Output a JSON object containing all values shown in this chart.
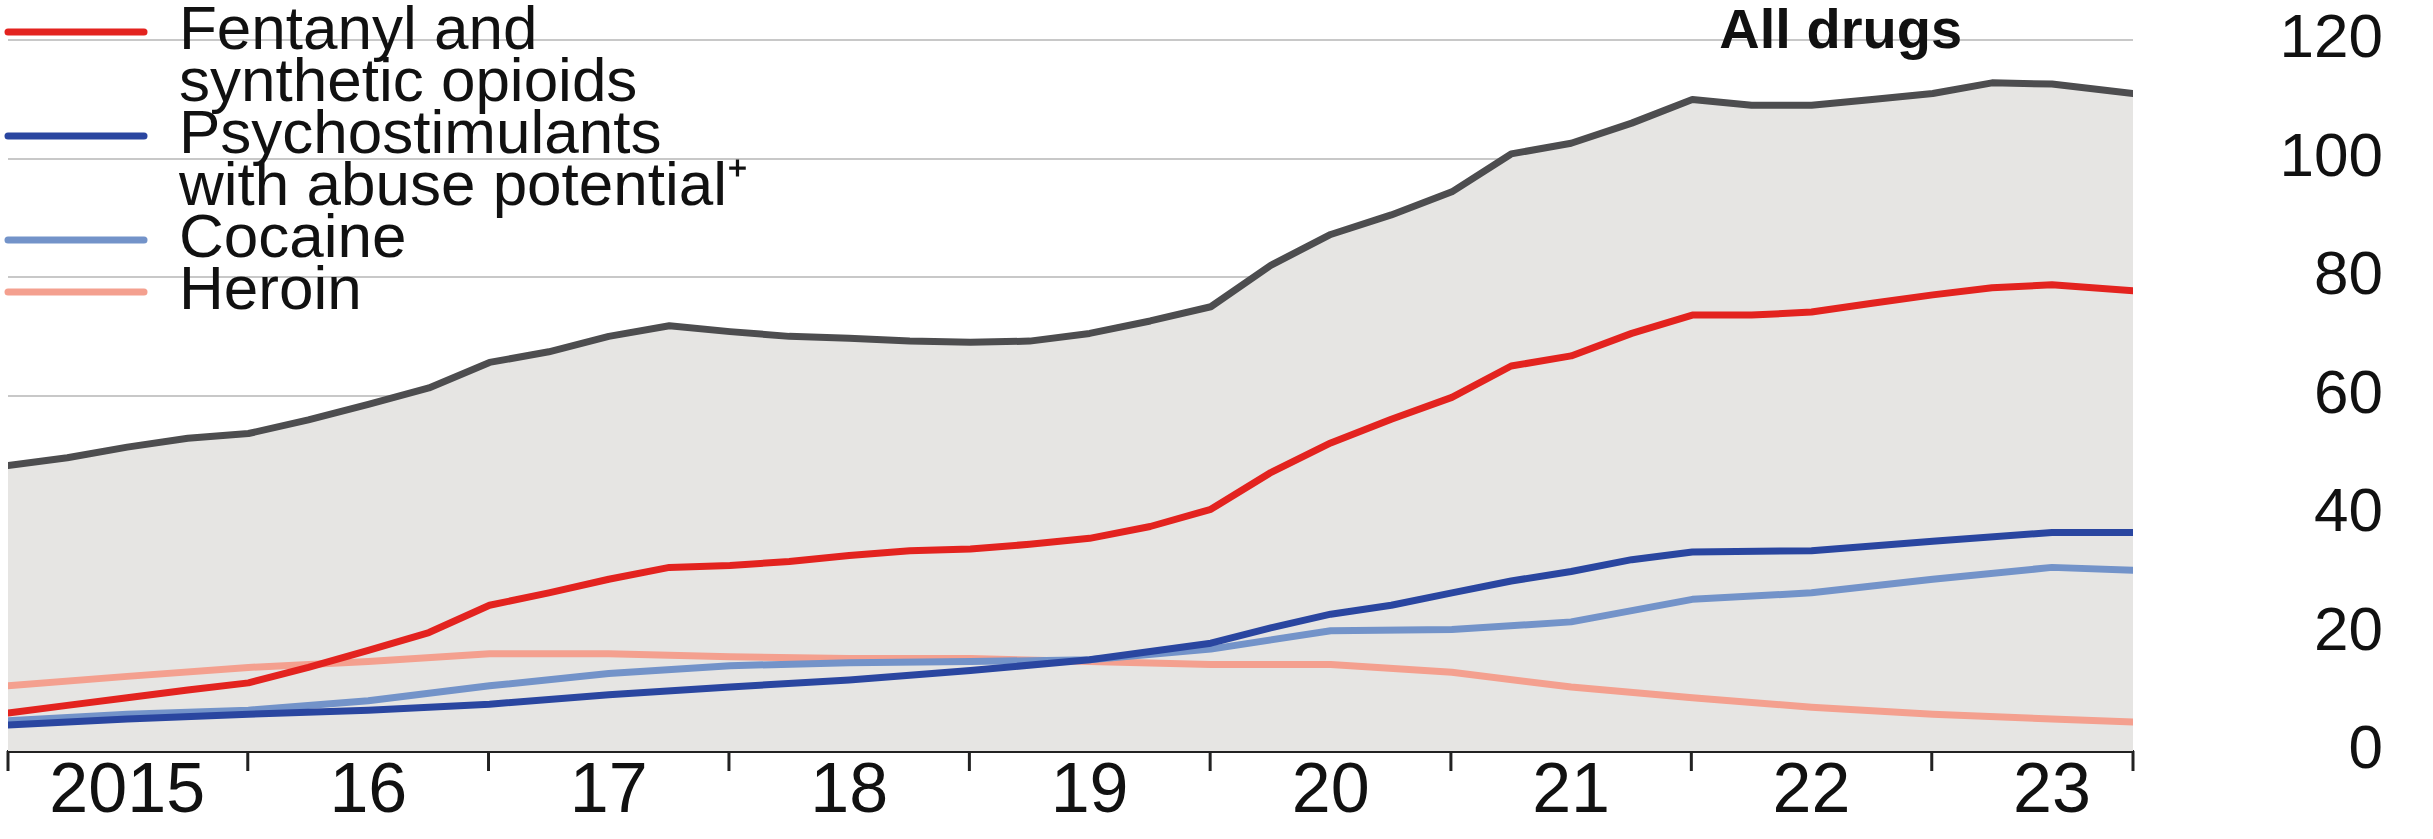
{
  "chart_data": {
    "type": "line",
    "xlim": [
      "2015-01",
      "2023-11"
    ],
    "xticks": [
      {
        "value": "2015-07",
        "label": "2015"
      },
      {
        "value": "2016-07",
        "label": "16"
      },
      {
        "value": "2017-07",
        "label": "17"
      },
      {
        "value": "2018-07",
        "label": "18"
      },
      {
        "value": "2019-07",
        "label": "19"
      },
      {
        "value": "2020-07",
        "label": "20"
      },
      {
        "value": "2021-07",
        "label": "21"
      },
      {
        "value": "2022-07",
        "label": "22"
      },
      {
        "value": "2023-07",
        "label": "23"
      }
    ],
    "ylim": [
      0,
      120
    ],
    "yticks": [
      0,
      20,
      40,
      60,
      80,
      100,
      120
    ],
    "grid": "y",
    "legend": "top left",
    "series": [
      {
        "name": "All drugs",
        "type": "area",
        "color": "#4d4d4f",
        "x": [
          "2015-01",
          "2015-04",
          "2015-07",
          "2015-10",
          "2016-01",
          "2016-04",
          "2016-07",
          "2016-10",
          "2017-01",
          "2017-04",
          "2017-07",
          "2017-10",
          "2018-01",
          "2018-04",
          "2018-07",
          "2018-10",
          "2019-01",
          "2019-04",
          "2019-07",
          "2019-10",
          "2020-01",
          "2020-04",
          "2020-07",
          "2020-10",
          "2021-01",
          "2021-04",
          "2021-07",
          "2021-10",
          "2022-01",
          "2022-04",
          "2022-07",
          "2022-10",
          "2023-01",
          "2023-04",
          "2023-07",
          "2023-11"
        ],
        "values": [
          48.2,
          49.5,
          51.3,
          52.8,
          53.6,
          55.9,
          58.5,
          61.3,
          65.6,
          67.4,
          70,
          71.8,
          70.8,
          70,
          69.7,
          69.2,
          69,
          69.2,
          70.5,
          72.6,
          75,
          82,
          87.2,
          90.5,
          94.4,
          100.8,
          102.6,
          106,
          110,
          109,
          109,
          110,
          111,
          112.8,
          112.6,
          111
        ]
      },
      {
        "name": "Fentanyl and synthetic opioids",
        "type": "line",
        "color": "#e3231f",
        "x": [
          "2015-01",
          "2015-04",
          "2015-07",
          "2015-10",
          "2016-01",
          "2016-04",
          "2016-07",
          "2016-10",
          "2017-01",
          "2017-04",
          "2017-07",
          "2017-10",
          "2018-01",
          "2018-04",
          "2018-07",
          "2018-10",
          "2019-01",
          "2019-04",
          "2019-07",
          "2019-10",
          "2020-01",
          "2020-04",
          "2020-07",
          "2020-10",
          "2021-01",
          "2021-04",
          "2021-07",
          "2021-10",
          "2022-01",
          "2022-04",
          "2022-07",
          "2022-10",
          "2023-01",
          "2023-04",
          "2023-07",
          "2023-11"
        ],
        "values": [
          6.4,
          7.7,
          9,
          10.3,
          11.5,
          14.1,
          17,
          20,
          24.6,
          26.7,
          29,
          31,
          31.3,
          32,
          33,
          33.8,
          34.1,
          34.9,
          35.9,
          37.9,
          40.8,
          47,
          52,
          56,
          59.7,
          65,
          66.7,
          70.5,
          73.6,
          73.6,
          74.1,
          75.6,
          77,
          78.2,
          78.7,
          77.7
        ]
      },
      {
        "name": "Psychostimulants with abuse potential⁺",
        "type": "line",
        "color": "#2a46a0",
        "x": [
          "2015-01",
          "2015-07",
          "2016-01",
          "2016-07",
          "2017-01",
          "2017-07",
          "2018-01",
          "2018-07",
          "2019-01",
          "2019-07",
          "2020-01",
          "2020-04",
          "2020-07",
          "2020-10",
          "2021-01",
          "2021-04",
          "2021-07",
          "2021-10",
          "2022-01",
          "2022-07",
          "2023-01",
          "2023-07",
          "2023-11"
        ],
        "values": [
          4.4,
          5.4,
          6.2,
          6.9,
          7.9,
          9.5,
          10.8,
          12,
          13.6,
          15.4,
          18.2,
          20.8,
          23.1,
          24.6,
          26.7,
          28.7,
          30.3,
          32.3,
          33.6,
          33.8,
          35.4,
          36.9,
          36.9
        ]
      },
      {
        "name": "Cocaine",
        "type": "line",
        "color": "#7393c9",
        "x": [
          "2015-01",
          "2015-07",
          "2016-01",
          "2016-07",
          "2017-01",
          "2017-07",
          "2018-01",
          "2018-07",
          "2019-01",
          "2019-07",
          "2020-01",
          "2020-07",
          "2021-01",
          "2021-07",
          "2022-01",
          "2022-07",
          "2023-01",
          "2023-07",
          "2023-11"
        ],
        "values": [
          5.1,
          6.2,
          6.9,
          8.5,
          11,
          13.1,
          14.4,
          14.9,
          15.1,
          15.4,
          17.2,
          20.3,
          20.5,
          21.8,
          25.6,
          26.7,
          29,
          31,
          30.5
        ]
      },
      {
        "name": "Heroin",
        "type": "line",
        "color": "#f4a08f",
        "x": [
          "2015-01",
          "2015-07",
          "2016-01",
          "2016-07",
          "2017-01",
          "2017-07",
          "2018-01",
          "2018-07",
          "2019-01",
          "2019-07",
          "2020-01",
          "2020-07",
          "2021-01",
          "2021-07",
          "2022-01",
          "2022-07",
          "2023-01",
          "2023-07",
          "2023-11"
        ],
        "values": [
          11,
          12.6,
          14.1,
          15.1,
          16.4,
          16.4,
          15.9,
          15.6,
          15.6,
          15.1,
          14.6,
          14.6,
          13.3,
          10.8,
          9,
          7.4,
          6.2,
          5.4,
          4.9
        ]
      }
    ]
  }
}
